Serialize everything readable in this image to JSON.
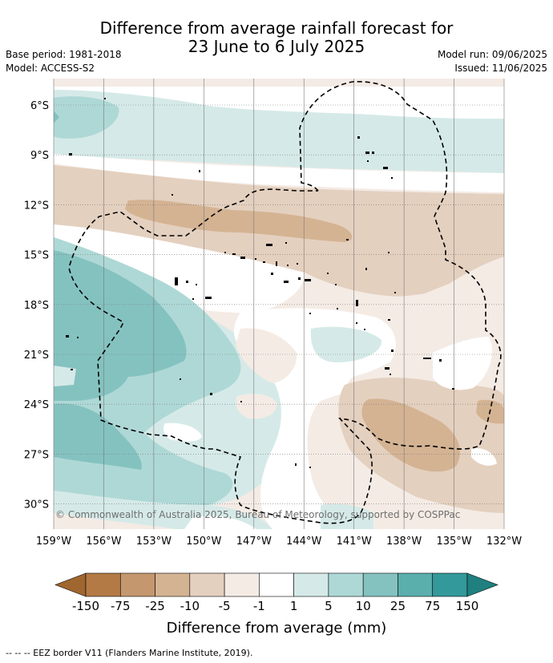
{
  "title": {
    "line1": "Difference from average rainfall forecast for",
    "line2": "23 June to 6 July 2025"
  },
  "meta": {
    "base_period": "Base period: 1981-2018",
    "model": "Model: ACCESS-S2",
    "model_run": "Model run: 09/06/2025",
    "issued": "Issued: 11/06/2025"
  },
  "map": {
    "lat_labels": [
      "6°S",
      "9°S",
      "12°S",
      "15°S",
      "18°S",
      "21°S",
      "24°S",
      "27°S",
      "30°S"
    ],
    "lon_labels": [
      "159°W",
      "156°W",
      "153°W",
      "150°W",
      "147°W",
      "144°W",
      "141°W",
      "138°W",
      "135°W",
      "132°W"
    ],
    "copyright": "© Commonwealth of Australia 2025, Bureau of Meteorology, supported by COSPPac"
  },
  "colorbar": {
    "labels": [
      "-150",
      "-75",
      "-25",
      "-10",
      "-5",
      "-1",
      "1",
      "5",
      "10",
      "25",
      "75",
      "150"
    ],
    "colors": [
      "#a0662f",
      "#b47a46",
      "#c4976e",
      "#d4b393",
      "#e4d0bf",
      "#f4ebe5",
      "#ffffff",
      "#d5eae8",
      "#aed8d6",
      "#84c2c0",
      "#5aaeab",
      "#34999a",
      "#1f807f"
    ],
    "title": "Difference from average (mm)"
  },
  "footer": {
    "legend_text": "--  --  -- EEZ border V11 (Flanders Marine Institute, 2019)."
  }
}
